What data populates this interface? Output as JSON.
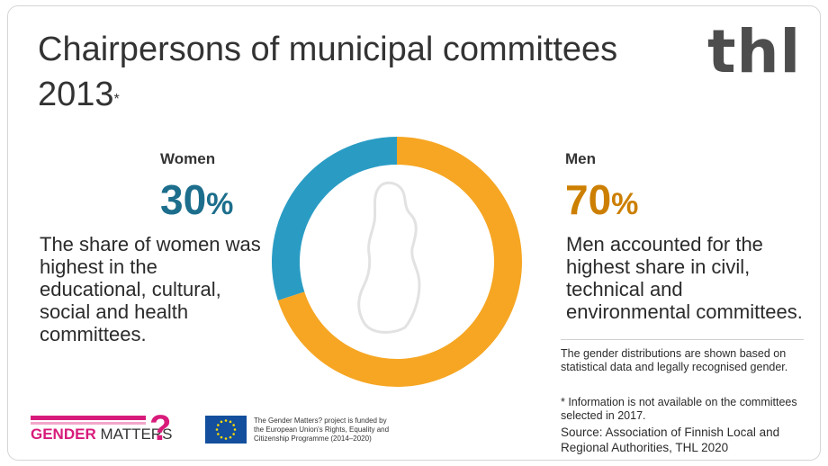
{
  "header": {
    "title_line1": "Chairpersons of municipal committees",
    "title_line2": "2013",
    "title_mark": "*",
    "logo": "thl"
  },
  "women": {
    "label": "Women",
    "percent": "30",
    "percent_symbol": "%",
    "description": [
      "The share of women was",
      "highest in the",
      "educational, cultural,",
      "social and health",
      "committees."
    ]
  },
  "men": {
    "label": "Men",
    "percent": "70",
    "percent_symbol": "%",
    "description": [
      "Men accounted for the",
      "highest share in civil,",
      "technical and",
      "environmental committees."
    ]
  },
  "notes": {
    "gender_note": [
      "The gender distributions are shown based on",
      "statistical data and legally recognised gender."
    ],
    "asterisk_note": [
      "* Information is not available on the committees",
      "selected in 2017."
    ],
    "source": [
      "Source:  Association of Finnish Local and",
      "Regional Authorities, THL 2020"
    ]
  },
  "footer": {
    "gender_matters_bold": "GENDER",
    "gender_matters_light": " MATTERS",
    "gender_matters_mark": "?",
    "eu_text": [
      "The Gender Matters? project is funded by",
      "the European Union's Rights, Equality and",
      "Citizenship Programme (2014–2020)"
    ]
  },
  "colors": {
    "women": "#2a9cc4",
    "men": "#f6a623",
    "women_text": "#1c6e8c",
    "men_text": "#cc7f00",
    "brand_pink": "#d81b7a"
  },
  "icons": {
    "map": "finland-map-outline-icon",
    "eu_flag": "eu-flag-icon"
  },
  "chart_data": {
    "type": "pie",
    "donut": true,
    "title": "Chairpersons of municipal committees 2013*",
    "categories": [
      "Women",
      "Men"
    ],
    "values": [
      30,
      70
    ],
    "unit": "%"
  }
}
